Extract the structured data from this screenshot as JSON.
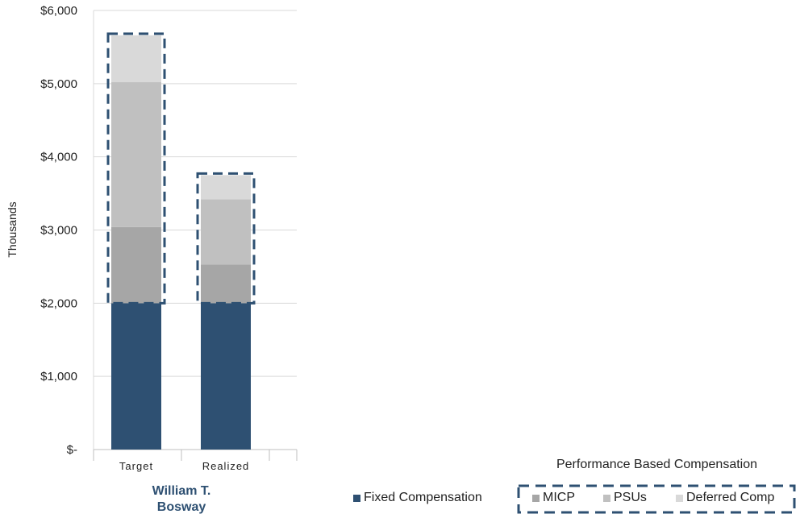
{
  "chart_data": {
    "type": "bar",
    "stacked": true,
    "ylabel": "Thousands",
    "ylim": [
      0,
      6000
    ],
    "yticks": [
      "$-",
      "$1,000",
      "$2,000",
      "$3,000",
      "$4,000",
      "$5,000",
      "$6,000"
    ],
    "ytick_values": [
      0,
      1000,
      2000,
      3000,
      4000,
      5000,
      6000
    ],
    "categories": [
      "Target",
      "Realized"
    ],
    "group_label": "William T. Bosway",
    "grid": true,
    "series": [
      {
        "name": "Fixed Compensation",
        "color": "#2e5072",
        "values": [
          2000,
          2000
        ]
      },
      {
        "name": "MICP",
        "color": "#a6a6a6",
        "values": [
          1040,
          530
        ]
      },
      {
        "name": "PSUs",
        "color": "#c0c0c0",
        "values": [
          1980,
          890
        ]
      },
      {
        "name": "Deferred Comp",
        "color": "#d9d9d9",
        "values": [
          640,
          330
        ]
      }
    ],
    "annotation_group": {
      "label": "Performance Based Compensation",
      "style": "dashed box around performance-based segments",
      "color": "#2e5072"
    },
    "legend_position": "bottom-right"
  }
}
